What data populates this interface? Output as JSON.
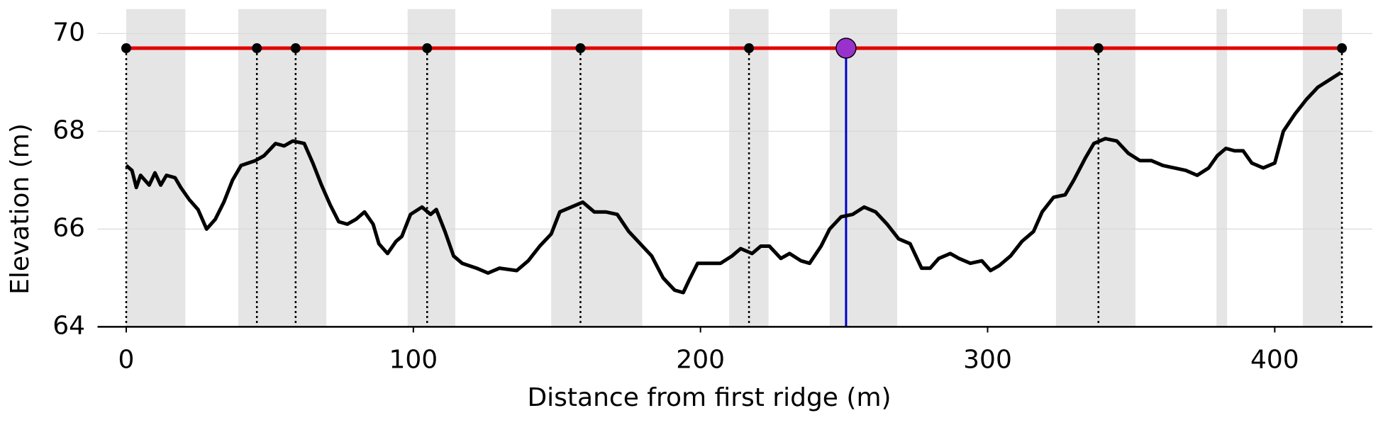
{
  "chart_data": {
    "type": "line",
    "xlabel": "Distance from first ridge (m)",
    "ylabel": "Elevation (m)",
    "x": [
      0,
      2,
      3.5,
      5,
      8,
      10,
      12,
      14,
      17,
      19,
      22,
      25,
      28,
      31,
      34,
      37,
      40,
      45,
      48,
      52,
      55,
      58,
      62,
      65,
      68,
      71,
      74,
      77,
      80,
      83,
      86,
      88,
      91,
      94,
      96,
      99,
      103,
      106,
      108,
      111,
      114,
      117,
      122,
      126,
      130,
      136,
      140,
      144,
      148,
      151,
      155,
      159,
      163,
      167,
      171,
      175,
      179,
      183,
      187,
      191,
      194,
      196,
      199,
      203,
      207,
      211,
      214,
      218,
      221,
      224,
      228,
      231,
      235,
      238,
      242,
      245,
      249,
      253,
      257,
      261,
      265,
      269,
      273,
      277,
      280,
      283,
      287,
      290,
      294,
      298,
      301,
      304,
      308,
      312,
      316,
      319,
      323,
      327,
      330,
      334,
      337,
      341,
      345,
      349,
      353,
      357,
      361,
      365,
      369,
      373,
      377,
      380,
      383,
      386,
      389,
      392,
      396,
      400,
      403,
      407,
      411,
      415,
      419,
      423
    ],
    "series": [
      {
        "color": "#000000",
        "values": [
          67.3,
          67.2,
          66.85,
          67.1,
          66.9,
          67.15,
          66.9,
          67.1,
          67.05,
          66.85,
          66.6,
          66.4,
          66.0,
          66.2,
          66.55,
          67.0,
          67.3,
          67.4,
          67.5,
          67.75,
          67.7,
          67.8,
          67.75,
          67.35,
          66.9,
          66.5,
          66.15,
          66.1,
          66.2,
          66.35,
          66.1,
          65.7,
          65.5,
          65.75,
          65.85,
          66.3,
          66.45,
          66.3,
          66.4,
          65.95,
          65.45,
          65.3,
          65.2,
          65.1,
          65.2,
          65.15,
          65.35,
          65.65,
          65.9,
          66.35,
          66.45,
          66.55,
          66.35,
          66.35,
          66.3,
          65.95,
          65.7,
          65.45,
          65.0,
          64.75,
          64.7,
          64.95,
          65.3,
          65.3,
          65.3,
          65.45,
          65.6,
          65.5,
          65.65,
          65.65,
          65.4,
          65.5,
          65.35,
          65.3,
          65.65,
          66.0,
          66.25,
          66.3,
          66.45,
          66.35,
          66.1,
          65.8,
          65.7,
          65.2,
          65.2,
          65.4,
          65.5,
          65.4,
          65.3,
          65.35,
          65.15,
          65.25,
          65.45,
          65.75,
          65.95,
          66.35,
          66.65,
          66.7,
          67.0,
          67.45,
          67.75,
          67.85,
          67.8,
          67.55,
          67.4,
          67.4,
          67.3,
          67.25,
          67.2,
          67.1,
          67.25,
          67.5,
          67.65,
          67.6,
          67.6,
          67.35,
          67.25,
          67.35,
          68.0,
          68.35,
          68.65,
          68.9,
          69.05,
          69.2
        ]
      }
    ],
    "xlim": [
      -10,
      434
    ],
    "ylim": [
      64,
      70.5
    ],
    "xticks": [
      0,
      100,
      200,
      300,
      400
    ],
    "yticks": [
      64,
      66,
      68,
      70
    ],
    "grid": true,
    "shaded_spans": [
      [
        0,
        20.6
      ],
      [
        39,
        69.7
      ],
      [
        98,
        114.6
      ],
      [
        148,
        179.7
      ],
      [
        210,
        223.7
      ],
      [
        245,
        268.5
      ],
      [
        323.8,
        351.5
      ],
      [
        379.7,
        383.4
      ],
      [
        409.8,
        423.4
      ]
    ],
    "span_color": "#e5e5e5",
    "ridges": {
      "x": [
        0,
        45.5,
        59,
        104.8,
        158.2,
        216.9,
        338.6,
        423.4
      ],
      "y": 69.7,
      "line_color": "#e00000",
      "marker_color": "#000000"
    },
    "highlight": {
      "x": 250.7,
      "y": 69.7,
      "color": "#9932cc",
      "line_color": "#0000cc"
    }
  }
}
